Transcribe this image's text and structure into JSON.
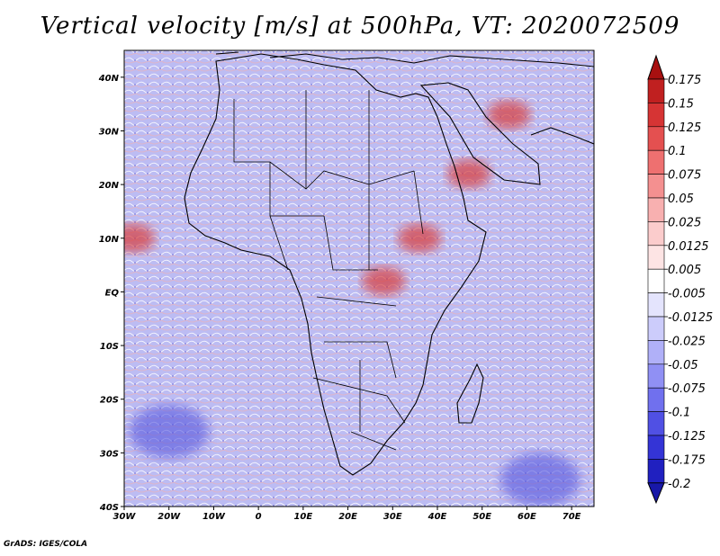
{
  "title": "Vertical velocity [m/s] at 500hPa, VT: 2020072509",
  "credit": "GrADS: IGES/COLA",
  "map": {
    "lon_range": [
      -30,
      75
    ],
    "lat_range": [
      -40,
      45
    ],
    "x_ticks": [
      {
        "value": -30,
        "label": "30W"
      },
      {
        "value": -20,
        "label": "20W"
      },
      {
        "value": -10,
        "label": "10W"
      },
      {
        "value": 0,
        "label": "0"
      },
      {
        "value": 10,
        "label": "10E"
      },
      {
        "value": 20,
        "label": "20E"
      },
      {
        "value": 30,
        "label": "30E"
      },
      {
        "value": 40,
        "label": "40E"
      },
      {
        "value": 50,
        "label": "50E"
      },
      {
        "value": 60,
        "label": "60E"
      },
      {
        "value": 70,
        "label": "70E"
      }
    ],
    "y_ticks": [
      {
        "value": 40,
        "label": "40N"
      },
      {
        "value": 30,
        "label": "30N"
      },
      {
        "value": 20,
        "label": "20N"
      },
      {
        "value": 10,
        "label": "10N"
      },
      {
        "value": 0,
        "label": "EQ"
      },
      {
        "value": -10,
        "label": "10S"
      },
      {
        "value": -20,
        "label": "20S"
      },
      {
        "value": -30,
        "label": "30S"
      },
      {
        "value": -40,
        "label": "40S"
      }
    ],
    "features": [
      {
        "name": "upward-motion-west-african-monsoon",
        "lon": -28,
        "lat": 10,
        "sign": "up"
      },
      {
        "name": "upward-motion-central-africa",
        "lon": 28,
        "lat": 2,
        "sign": "up"
      },
      {
        "name": "upward-motion-ethiopian-highlands",
        "lon": 36,
        "lat": 10,
        "sign": "up"
      },
      {
        "name": "upward-motion-arabia",
        "lon": 47,
        "lat": 22,
        "sign": "up"
      },
      {
        "name": "upward-motion-iran",
        "lon": 56,
        "lat": 33,
        "sign": "up"
      },
      {
        "name": "subsidence-south-atlantic",
        "lon": -20,
        "lat": -26,
        "sign": "down"
      },
      {
        "name": "subsidence-south-indian-ocean",
        "lon": 63,
        "lat": -35,
        "sign": "down"
      }
    ]
  },
  "colorbar": {
    "levels": [
      {
        "label": "0.175",
        "color": "#a81010"
      },
      {
        "label": "0.15",
        "color": "#c02020"
      },
      {
        "label": "0.125",
        "color": "#d63434"
      },
      {
        "label": "0.1",
        "color": "#e45050"
      },
      {
        "label": "0.075",
        "color": "#ee7070"
      },
      {
        "label": "0.05",
        "color": "#f49090"
      },
      {
        "label": "0.025",
        "color": "#f8b0b0"
      },
      {
        "label": "0.0125",
        "color": "#fbcccc"
      },
      {
        "label": "0.005",
        "color": "#fde4e4"
      },
      {
        "label": "-0.005",
        "color": "#ffffff"
      },
      {
        "label": "-0.0125",
        "color": "#e4e4fd"
      },
      {
        "label": "-0.025",
        "color": "#ccccfb"
      },
      {
        "label": "-0.05",
        "color": "#b0b0f8"
      },
      {
        "label": "-0.075",
        "color": "#9090f4"
      },
      {
        "label": "-0.1",
        "color": "#7070ee"
      },
      {
        "label": "-0.125",
        "color": "#5050e4"
      },
      {
        "label": "-0.175",
        "color": "#3434d6"
      },
      {
        "label": "-0.2",
        "color": "#2020c0"
      }
    ],
    "top_color": "#a81010",
    "bottom_color": "#1818a8"
  }
}
